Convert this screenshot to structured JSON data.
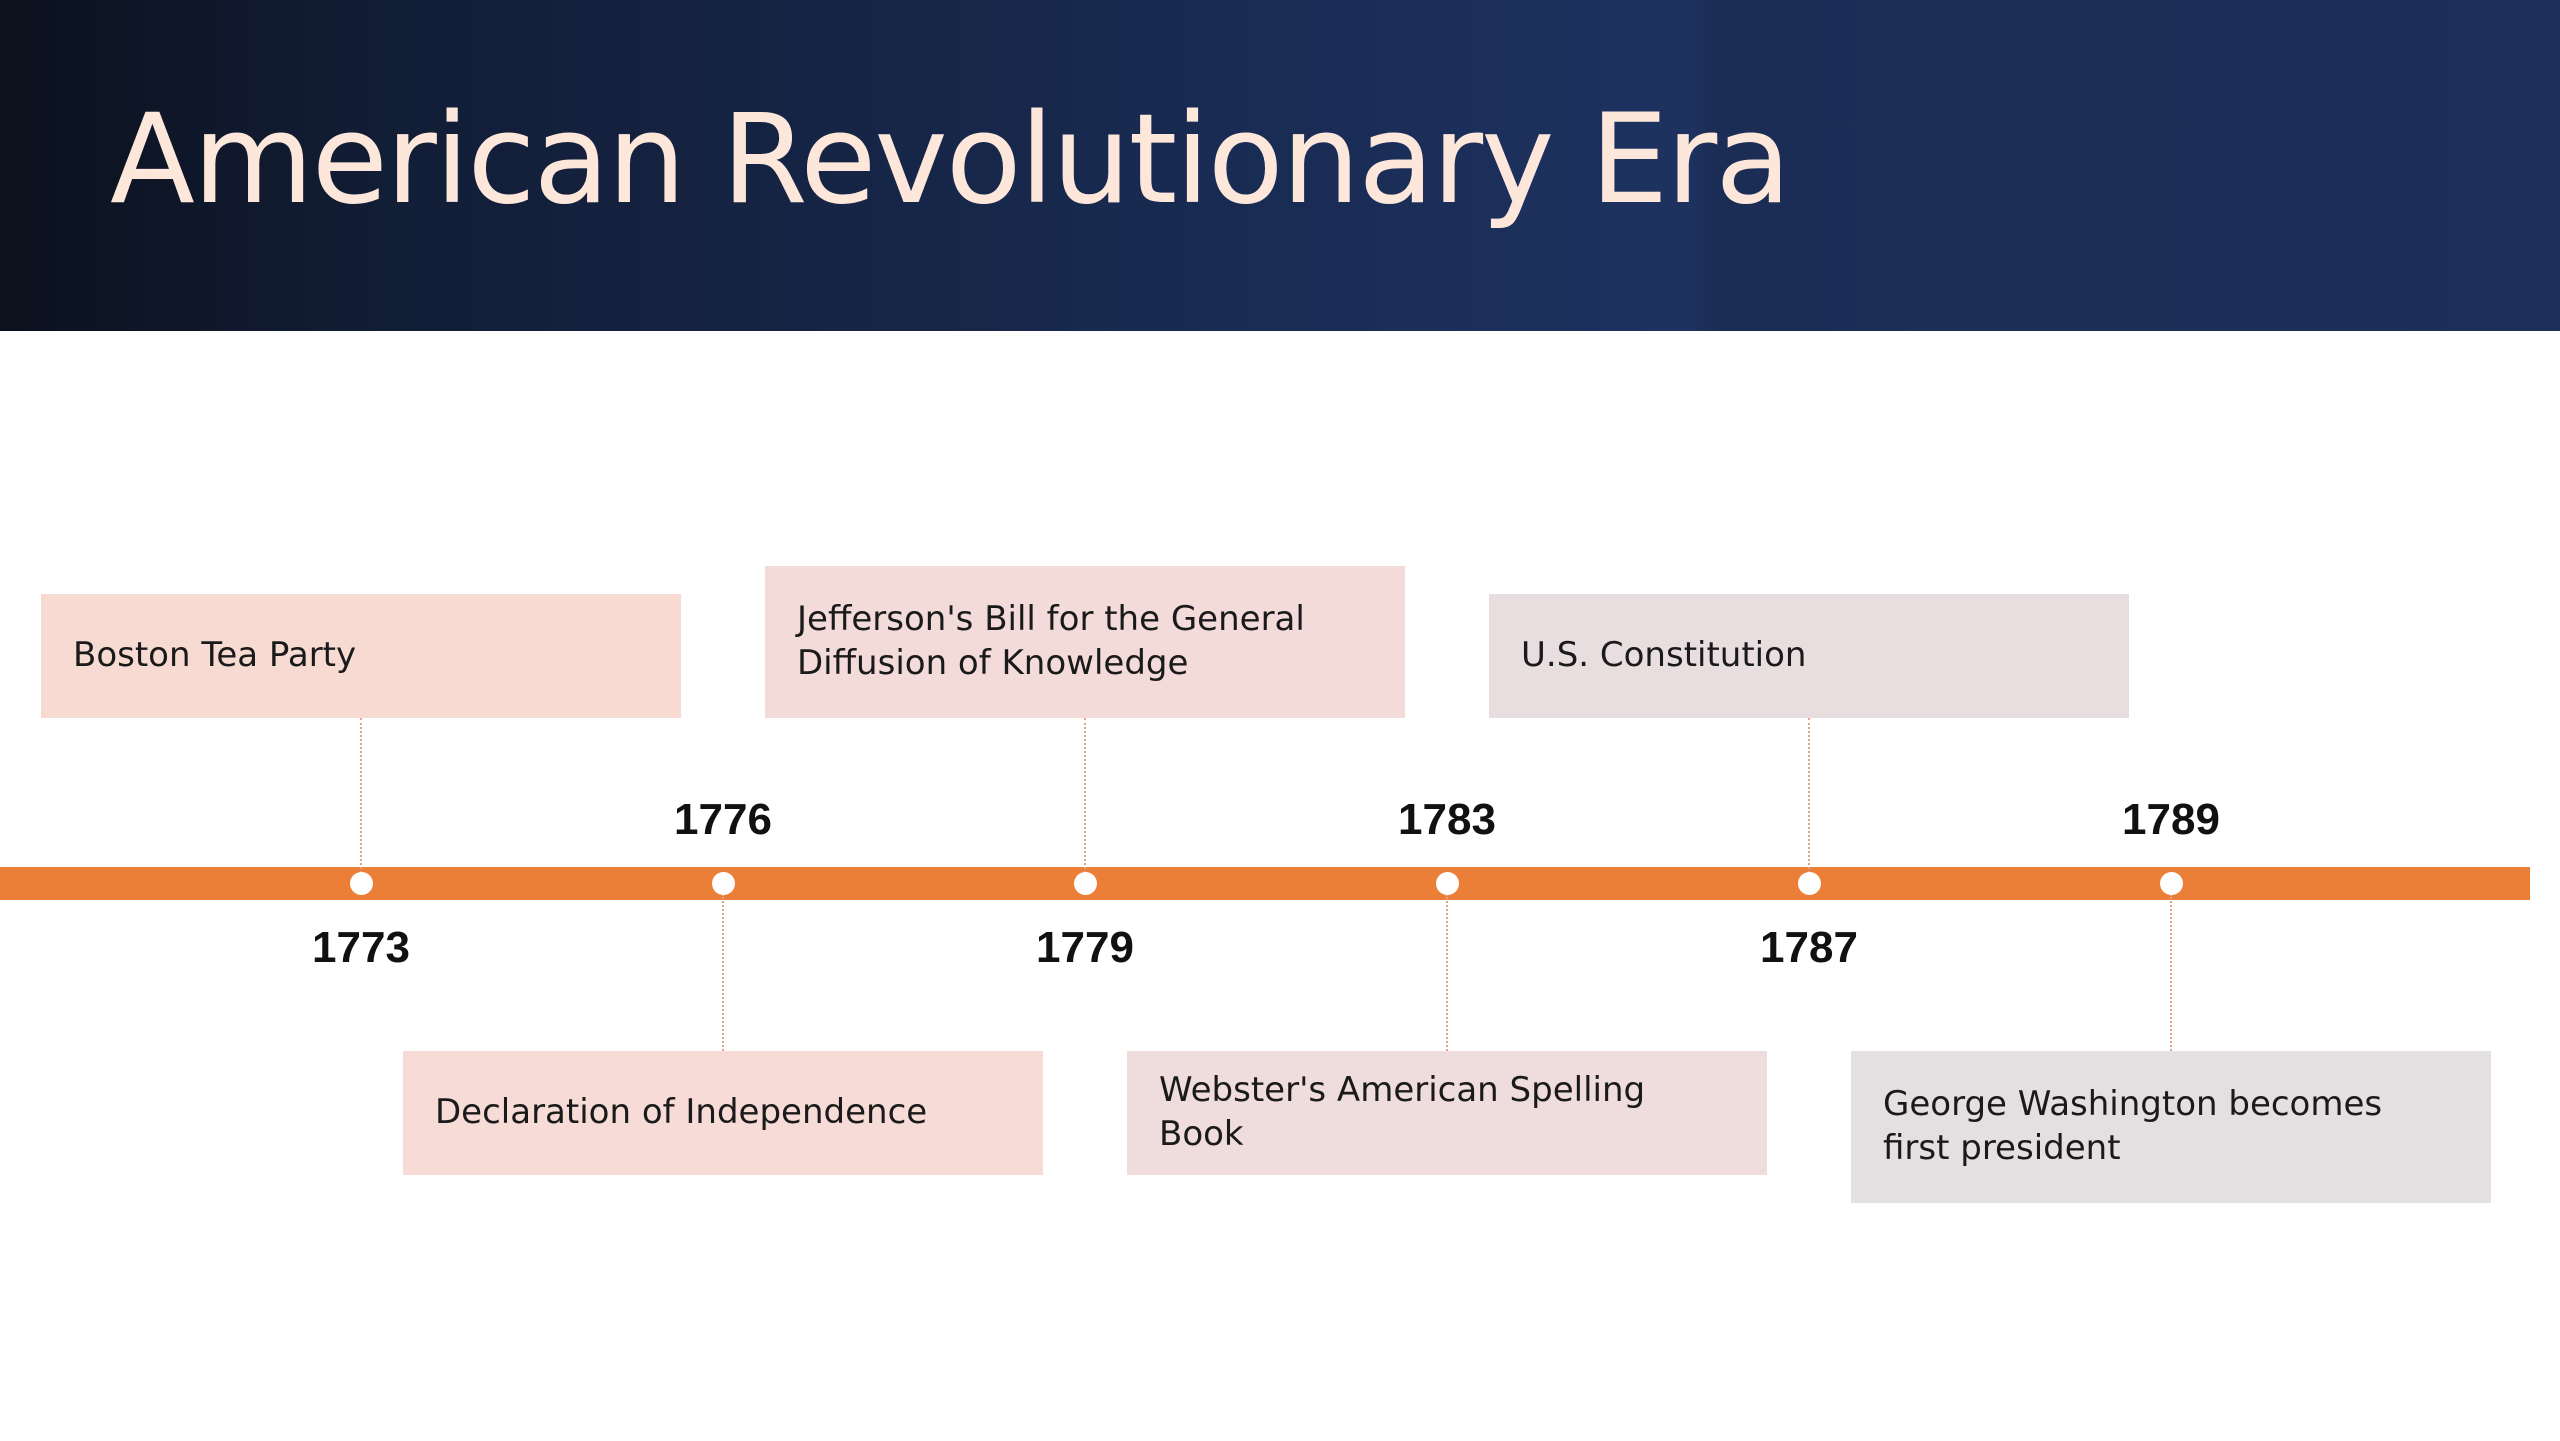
{
  "slide": {
    "title": "American Revolutionary Era"
  },
  "colors": {
    "axis": "#ec7f37",
    "connector": "#e1a48e",
    "title_text": "#fde6da",
    "header_dark": "#0b111d",
    "header_blue": "#1d3260"
  },
  "timeline": {
    "events": [
      {
        "year": "1773",
        "label": "Boston Tea Party",
        "side": "above",
        "box_color": "#f7dbd2"
      },
      {
        "year": "1776",
        "label": "Declaration of Independence",
        "side": "below",
        "box_color": "#f6dbd6"
      },
      {
        "year": "1779",
        "label": "Jefferson's Bill for the General Diffusion of Knowledge",
        "side": "above",
        "box_color": "#f3dbd9"
      },
      {
        "year": "1783",
        "label": "Webster's American Spelling Book",
        "side": "below",
        "box_color": "#efdcdc"
      },
      {
        "year": "1787",
        "label": "U.S. Constitution",
        "side": "above",
        "box_color": "#e9dedf"
      },
      {
        "year": "1789",
        "label": "George Washington becomes first president",
        "side": "below",
        "box_color": "#e4e0e1"
      }
    ]
  }
}
